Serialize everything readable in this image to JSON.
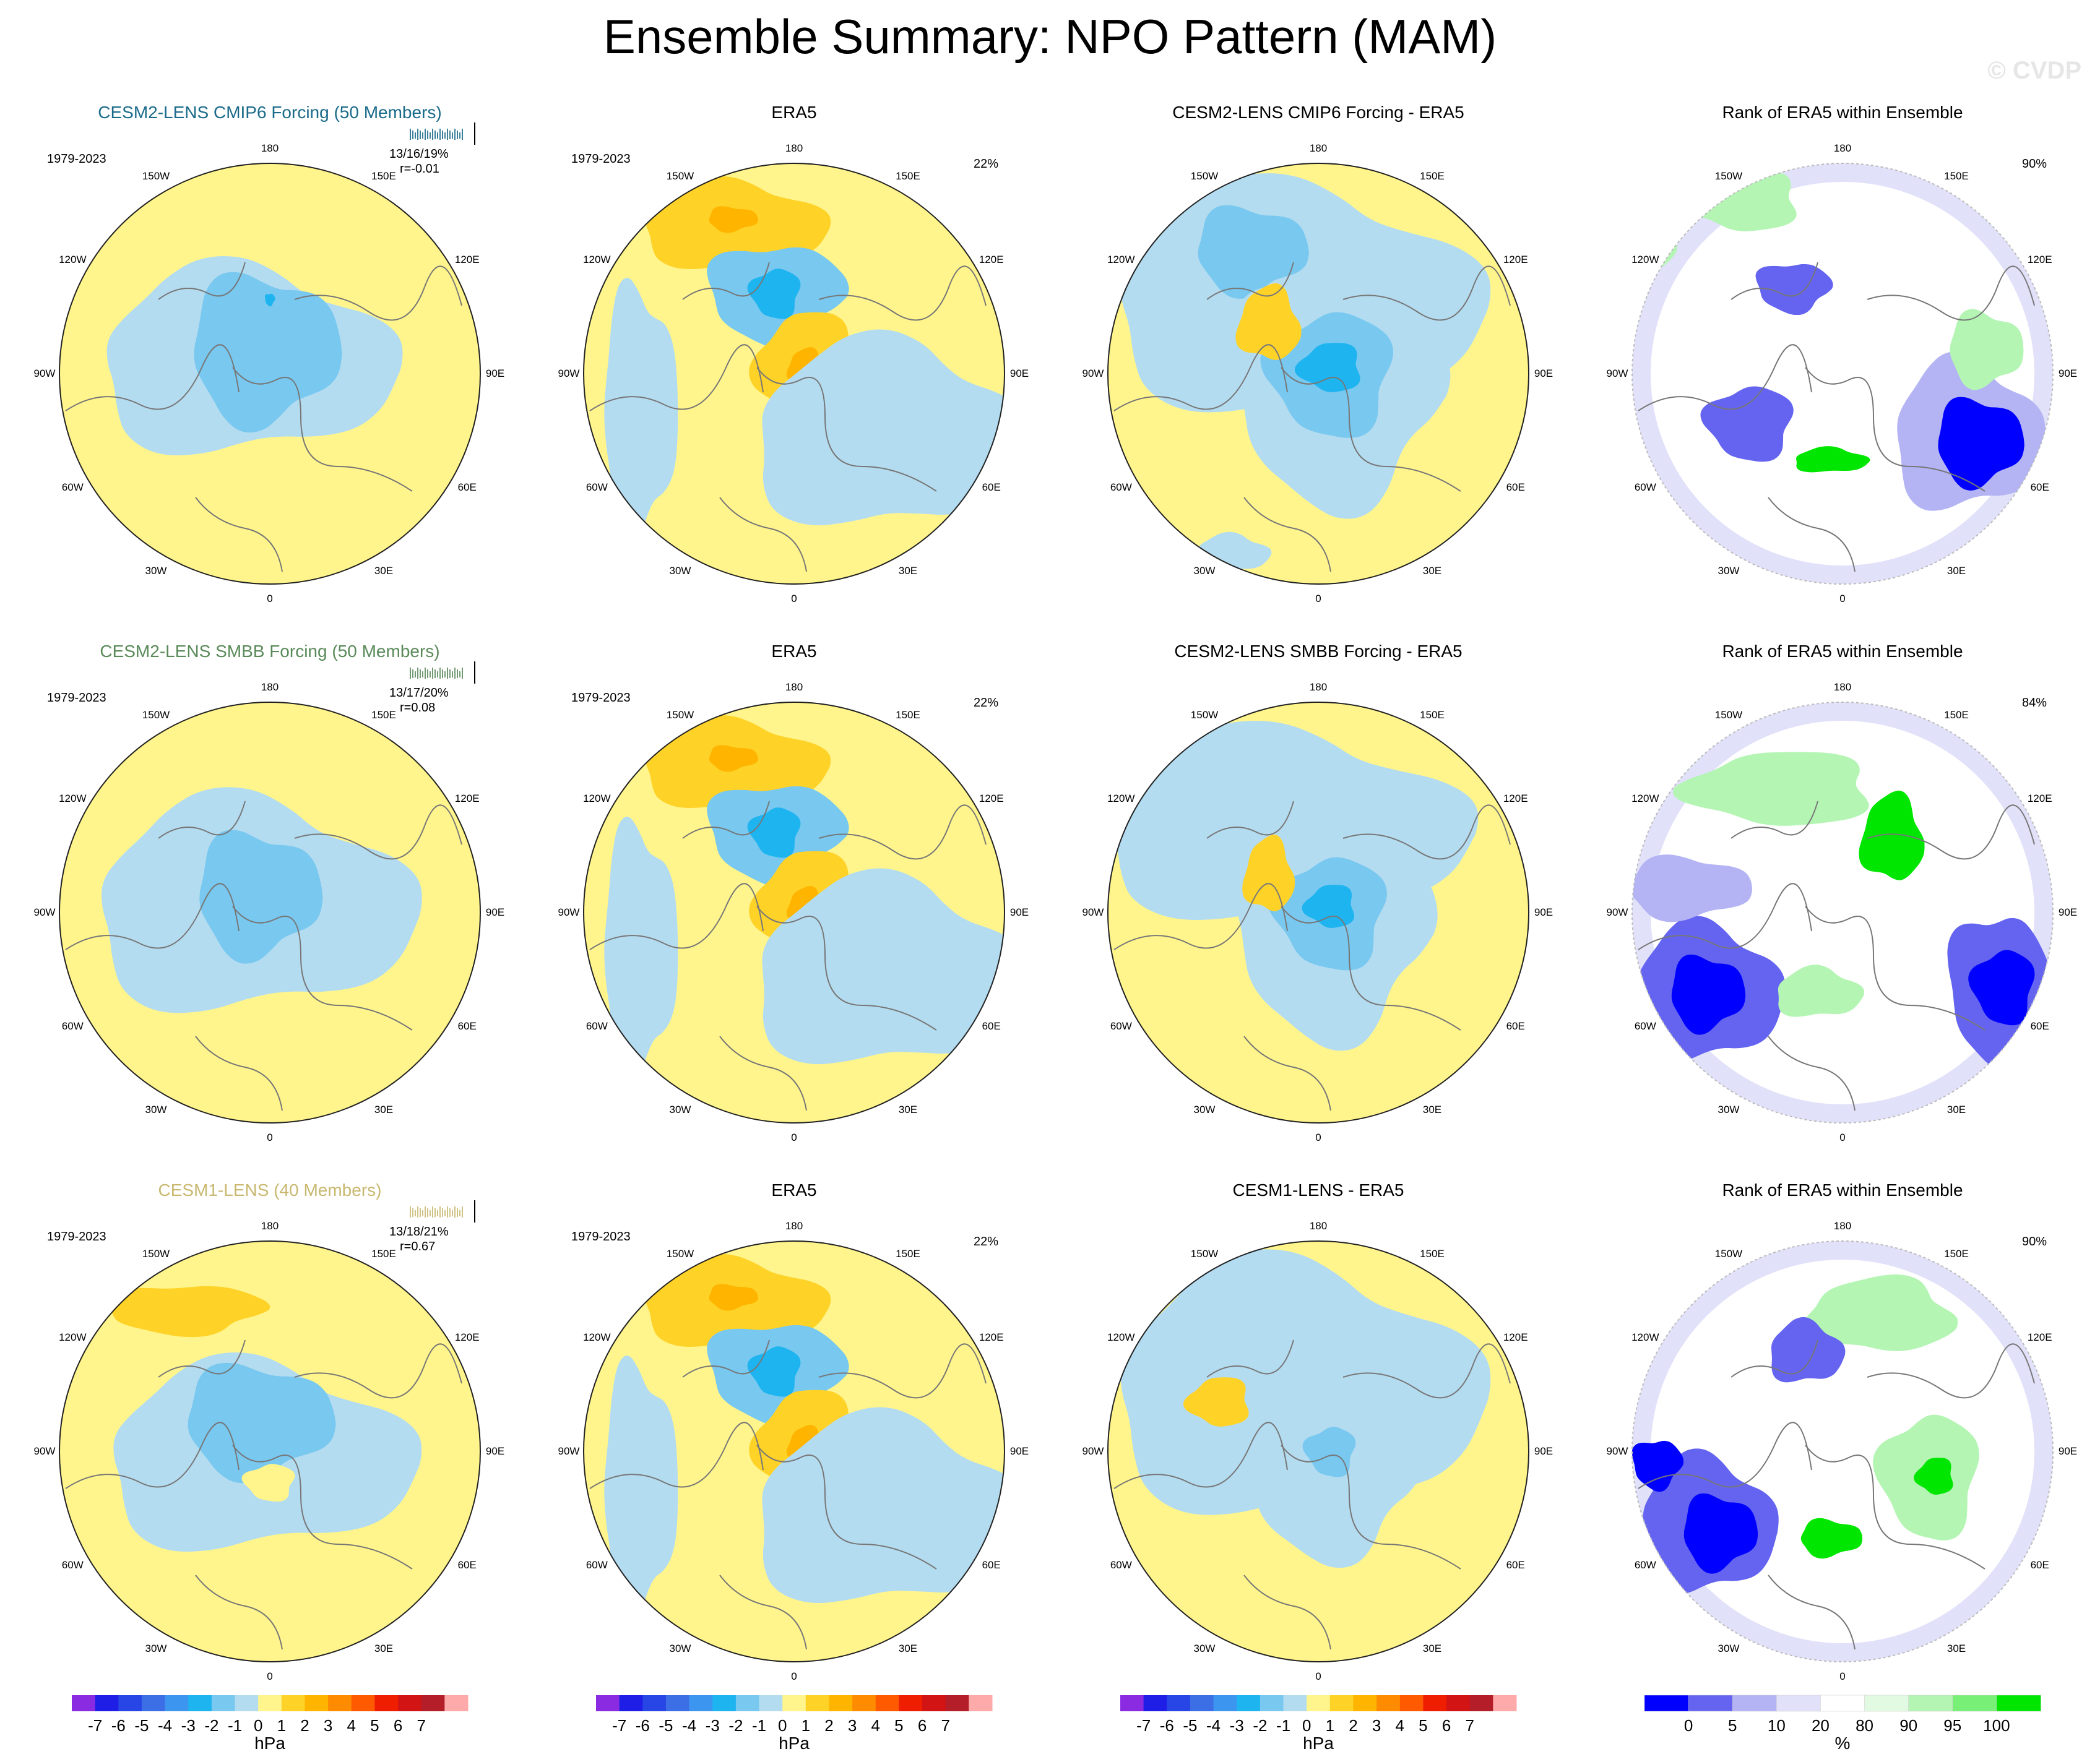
{
  "title": "Ensemble Summary: NPO Pattern (MAM)",
  "watermark": "© CVDP",
  "rows": [
    {
      "model": {
        "title": "CESM2-LENS CMIP6 Forcing (50 Members)",
        "title_color": "#1a6a8a",
        "period": "1979-2023",
        "stats": "13/16/19%",
        "corr": "r=-0.01"
      },
      "era5": {
        "title": "ERA5",
        "period": "1979-2023",
        "pct": "22%"
      },
      "diff": {
        "title": "CESM2-LENS CMIP6 Forcing - ERA5"
      },
      "rank": {
        "title": "Rank of ERA5 within Ensemble",
        "pct": "90%"
      }
    },
    {
      "model": {
        "title": "CESM2-LENS SMBB Forcing (50 Members)",
        "title_color": "#5a8a5a",
        "period": "1979-2023",
        "stats": "13/17/20%",
        "corr": "r=0.08"
      },
      "era5": {
        "title": "ERA5",
        "period": "1979-2023",
        "pct": "22%"
      },
      "diff": {
        "title": "CESM2-LENS SMBB Forcing - ERA5"
      },
      "rank": {
        "title": "Rank of ERA5 within Ensemble",
        "pct": "84%"
      }
    },
    {
      "model": {
        "title": "CESM1-LENS (40 Members)",
        "title_color": "#c8b870",
        "period": "1979-2023",
        "stats": "13/18/21%",
        "corr": "r=0.67"
      },
      "era5": {
        "title": "ERA5",
        "period": "1979-2023",
        "pct": "22%"
      },
      "diff": {
        "title": "CESM1-LENS - ERA5"
      },
      "rank": {
        "title": "Rank of ERA5 within Ensemble",
        "pct": "90%"
      }
    }
  ],
  "lon_labels": [
    "180",
    "150E",
    "120E",
    "90E",
    "60E",
    "30E",
    "0",
    "30W",
    "60W",
    "90W",
    "120W",
    "150W"
  ],
  "colorbar_hpa": {
    "unit": "hPa",
    "ticks": [
      "-7",
      "-6",
      "-5",
      "-4",
      "-3",
      "-2",
      "-1",
      "0",
      "1",
      "2",
      "3",
      "4",
      "5",
      "6",
      "7"
    ],
    "colors": [
      "#8a2be2",
      "#1e1ee6",
      "#2846e6",
      "#3c6ee6",
      "#3c96f0",
      "#1eb4f0",
      "#78c8f0",
      "#b4dcf0",
      "#fff58c",
      "#ffd228",
      "#ffb400",
      "#ff8c00",
      "#ff5a00",
      "#f01e00",
      "#d21414",
      "#b41e28",
      "#ffaaaa"
    ]
  },
  "colorbar_pct": {
    "unit": "%",
    "ticks": [
      "0",
      "5",
      "10",
      "20",
      "80",
      "90",
      "95",
      "100"
    ],
    "colors": [
      "#0000ff",
      "#6464f0",
      "#b4b4f5",
      "#e1e1fa",
      "#ffffff",
      "#e1fae1",
      "#b4f5b4",
      "#78f078",
      "#00e600"
    ]
  },
  "chart_data": [
    {
      "type": "heatmap",
      "description": "polar stereographic filled contour maps of NPO pattern sea level pressure (hPa), Northern Hemisphere, MAM 1979-2023",
      "panels": [
        {
          "row": 0,
          "col": 0,
          "title": "CESM2-LENS CMIP6 Forcing (50 Members)",
          "min_hpa": -2,
          "max_hpa": 0,
          "pattern_corr": -0.01
        },
        {
          "row": 0,
          "col": 1,
          "title": "ERA5",
          "min_hpa": -4,
          "max_hpa": 3,
          "variance_explained": "22%"
        },
        {
          "row": 0,
          "col": 2,
          "title": "CESM2-LENS CMIP6 Forcing - ERA5",
          "min_hpa": -4,
          "max_hpa": 2
        },
        {
          "row": 0,
          "col": 3,
          "title": "Rank of ERA5 within Ensemble",
          "units": "%",
          "pct": "90%"
        },
        {
          "row": 1,
          "col": 0,
          "title": "CESM2-LENS SMBB Forcing (50 Members)",
          "min_hpa": -2,
          "max_hpa": 0,
          "pattern_corr": 0.08
        },
        {
          "row": 1,
          "col": 1,
          "title": "ERA5",
          "min_hpa": -4,
          "max_hpa": 3,
          "variance_explained": "22%"
        },
        {
          "row": 1,
          "col": 2,
          "title": "CESM2-LENS SMBB Forcing - ERA5",
          "min_hpa": -4,
          "max_hpa": 2
        },
        {
          "row": 1,
          "col": 3,
          "title": "Rank of ERA5 within Ensemble",
          "units": "%",
          "pct": "84%"
        },
        {
          "row": 2,
          "col": 0,
          "title": "CESM1-LENS (40 Members)",
          "min_hpa": -2,
          "max_hpa": 2,
          "pattern_corr": 0.67
        },
        {
          "row": 2,
          "col": 1,
          "title": "ERA5",
          "min_hpa": -4,
          "max_hpa": 3,
          "variance_explained": "22%"
        },
        {
          "row": 2,
          "col": 2,
          "title": "CESM1-LENS - ERA5",
          "min_hpa": -3,
          "max_hpa": 1
        },
        {
          "row": 2,
          "col": 3,
          "title": "Rank of ERA5 within Ensemble",
          "units": "%",
          "pct": "90%"
        }
      ],
      "colorbar_hpa_range": [
        -7,
        7
      ],
      "colorbar_pct_range": [
        0,
        100
      ]
    }
  ]
}
